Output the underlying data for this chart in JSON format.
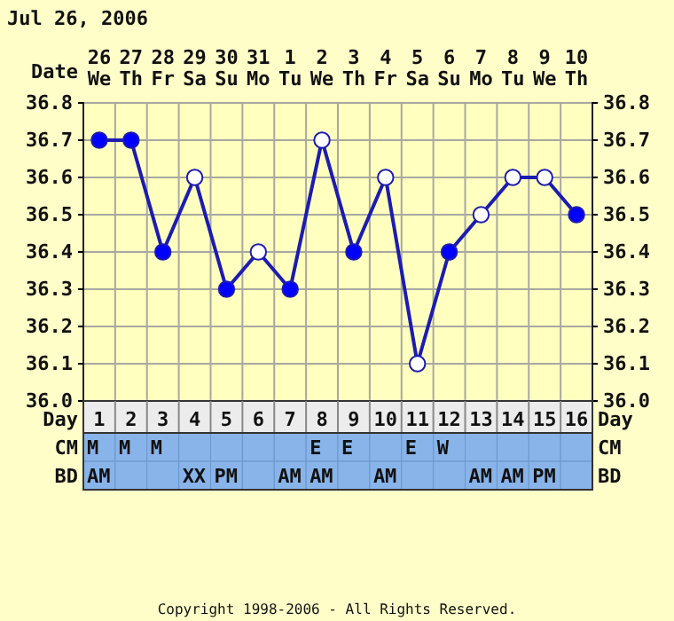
{
  "chart_data": [
    {
      "type": "line",
      "title": "Jul 26, 2006",
      "xlabel": "Day",
      "x2label": "Date",
      "x": [
        1,
        2,
        3,
        4,
        5,
        6,
        7,
        8,
        9,
        10,
        11,
        12,
        13,
        14,
        15,
        16
      ],
      "xlim": [
        0.5,
        16.5
      ],
      "xticks": [
        1,
        2,
        3,
        4,
        5,
        6,
        7,
        8,
        9,
        10,
        11,
        12,
        13,
        14,
        15,
        16
      ],
      "x2lim": [
        "2006-07-25T12:00",
        "2006-08-10T12:00"
      ],
      "x2ticks": [
        {
          "value": "2006-07-26",
          "label": "26 We"
        },
        {
          "value": "2006-07-27",
          "label": "27 Th"
        },
        {
          "value": "2006-07-28",
          "label": "28 Fr"
        },
        {
          "value": "2006-07-29",
          "label": "29 Sa"
        },
        {
          "value": "2006-07-30",
          "label": "30 Su"
        },
        {
          "value": "2006-07-31",
          "label": "31 Mo"
        },
        {
          "value": "2006-08-01",
          "label": "1 Tu"
        },
        {
          "value": "2006-08-02",
          "label": "2 We"
        },
        {
          "value": "2006-08-03",
          "label": "3 Th"
        },
        {
          "value": "2006-08-04",
          "label": "4 Fr"
        },
        {
          "value": "2006-08-05",
          "label": "5 Sa"
        },
        {
          "value": "2006-08-06",
          "label": "6 Su"
        },
        {
          "value": "2006-08-07",
          "label": "7 Mo"
        },
        {
          "value": "2006-08-08",
          "label": "8 Tu"
        },
        {
          "value": "2006-08-09",
          "label": "9 We"
        },
        {
          "value": "2006-08-10",
          "label": "10 Th"
        }
      ],
      "ylim": [
        36.0,
        36.8
      ],
      "yticks": [
        {
          "value": 36.0,
          "label": "36.0"
        },
        {
          "value": 36.1,
          "label": "36.1"
        },
        {
          "value": 36.2,
          "label": "36.2"
        },
        {
          "value": 36.3,
          "label": "36.3"
        },
        {
          "value": 36.4,
          "label": "36.4"
        },
        {
          "value": 36.5,
          "label": "36.5"
        },
        {
          "value": 36.6,
          "label": "36.6"
        },
        {
          "value": 36.7,
          "label": "36.7"
        },
        {
          "value": 36.8,
          "label": "36.8"
        }
      ],
      "y2lim": [
        36.0,
        36.8
      ],
      "y2ticks": [
        {
          "value": 36.0,
          "label": "36.0"
        },
        {
          "value": 36.1,
          "label": "36.1"
        },
        {
          "value": 36.2,
          "label": "36.2"
        },
        {
          "value": 36.3,
          "label": "36.3"
        },
        {
          "value": 36.4,
          "label": "36.4"
        },
        {
          "value": 36.5,
          "label": "36.5"
        },
        {
          "value": 36.6,
          "label": "36.6"
        },
        {
          "value": 36.7,
          "label": "36.7"
        },
        {
          "value": 36.8,
          "label": "36.8"
        }
      ],
      "grid": true,
      "marker": "circle",
      "series": [
        {
          "type": "line",
          "marker": "none",
          "color": "#1c1cb0",
          "values": [
            36.7,
            36.7,
            36.4,
            36.6,
            36.3,
            36.4,
            36.3,
            36.7,
            36.4,
            36.6,
            36.1,
            36.4,
            36.5,
            36.6,
            36.6,
            36.5
          ]
        },
        {
          "type": "scatter",
          "color": "#0000ff",
          "values": [
            36.7,
            36.7,
            36.4,
            null,
            36.3,
            null,
            36.3,
            null,
            36.4,
            null,
            null,
            36.4,
            null,
            null,
            null,
            36.5
          ]
        },
        {
          "type": "scatter",
          "color": "#ffffff",
          "values": [
            null,
            null,
            null,
            36.6,
            null,
            36.4,
            null,
            36.7,
            null,
            36.6,
            36.1,
            null,
            36.5,
            36.6,
            36.6,
            null
          ]
        }
      ],
      "annotations": [
        "Copyright 1998-2006 - All Rights Reserved."
      ]
    },
    {
      "type": "heatmap",
      "categories": [
        null,
        null,
        null,
        null,
        null,
        null,
        null,
        null,
        null,
        null,
        null,
        null,
        null,
        null,
        null,
        null
      ],
      "y_categories": [
        "CM",
        "BD"
      ],
      "y2_categories": [
        "CM",
        "BD"
      ],
      "cells": [
        [
          null,
          null,
          null,
          null,
          null,
          null,
          null,
          null,
          null,
          null,
          null,
          null,
          null,
          null,
          null,
          null
        ],
        [
          null,
          null,
          null,
          null,
          null,
          null,
          null,
          null,
          null,
          null,
          null,
          null,
          null,
          null,
          null,
          null
        ]
      ],
      "cell_labels": [
        [
          "M",
          "M",
          "M",
          null,
          null,
          null,
          null,
          "E",
          "E",
          null,
          "E",
          "W",
          null,
          null,
          null,
          null
        ],
        [
          "AM",
          null,
          null,
          "XX",
          "PM",
          null,
          "AM",
          "AM",
          null,
          "AM",
          null,
          null,
          "AM",
          "AM",
          "PM",
          null
        ]
      ]
    }
  ]
}
